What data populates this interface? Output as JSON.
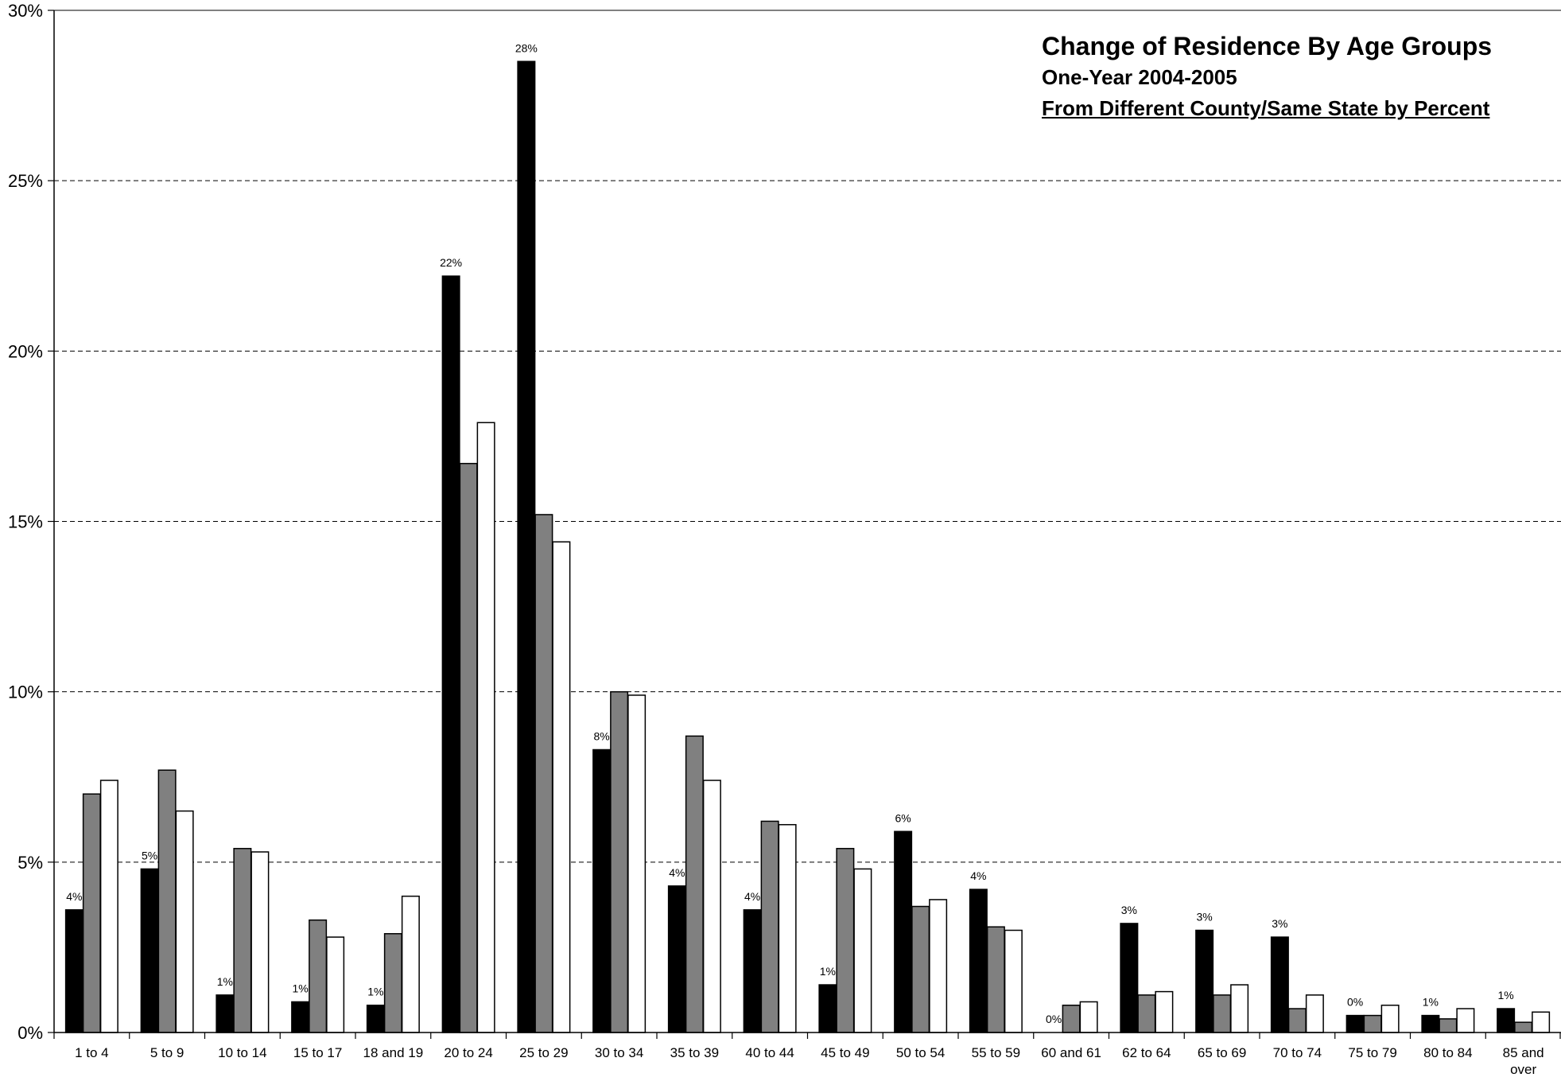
{
  "chart_data": {
    "type": "bar",
    "title": "Change of Residence By Age Groups",
    "subtitle": "One-Year 2004-2005",
    "subtitle2": "From Different County/Same State by Percent",
    "xlabel": "",
    "ylabel": "",
    "ylim": [
      0,
      30
    ],
    "yticks": [
      "0%",
      "5%",
      "10%",
      "15%",
      "20%",
      "25%",
      "30%"
    ],
    "grid": true,
    "legend": "none",
    "categories": [
      "1 to 4",
      "5 to 9",
      "10 to 14",
      "15 to 17",
      "18 and 19",
      "20 to 24",
      "25 to 29",
      "30 to 34",
      "35 to 39",
      "40 to 44",
      "45 to 49",
      "50 to 54",
      "55 to 59",
      "60 and 61",
      "62 to 64",
      "65 to 69",
      "70 to 74",
      "75 to 79",
      "80 to 84",
      "85  and over"
    ],
    "series": [
      {
        "color": "#000000",
        "values": [
          3.6,
          4.8,
          1.1,
          0.9,
          0.8,
          22.2,
          28.5,
          8.3,
          4.3,
          3.6,
          1.4,
          5.9,
          4.2,
          0.0,
          3.2,
          3.0,
          2.8,
          0.5,
          0.5,
          0.7
        ]
      },
      {
        "color": "#808080",
        "values": [
          7.0,
          7.7,
          5.4,
          3.3,
          2.9,
          16.7,
          15.2,
          10.0,
          8.7,
          6.2,
          5.4,
          3.7,
          3.1,
          0.8,
          1.1,
          1.1,
          0.7,
          0.5,
          0.4,
          0.3
        ]
      },
      {
        "color": "#ffffff",
        "values": [
          7.4,
          6.5,
          5.3,
          2.8,
          4.0,
          17.9,
          14.4,
          9.9,
          7.4,
          6.1,
          4.8,
          3.9,
          3.0,
          0.9,
          1.2,
          1.4,
          1.1,
          0.8,
          0.7,
          0.6
        ]
      }
    ],
    "data_labels": [
      "4%",
      "5%",
      "1%",
      "1%",
      "1%",
      "22%",
      "28%",
      "8%",
      "4%",
      "4%",
      "1%",
      "6%",
      "4%",
      "0%",
      "3%",
      "3%",
      "3%",
      "0%",
      "1%",
      "1%"
    ]
  }
}
